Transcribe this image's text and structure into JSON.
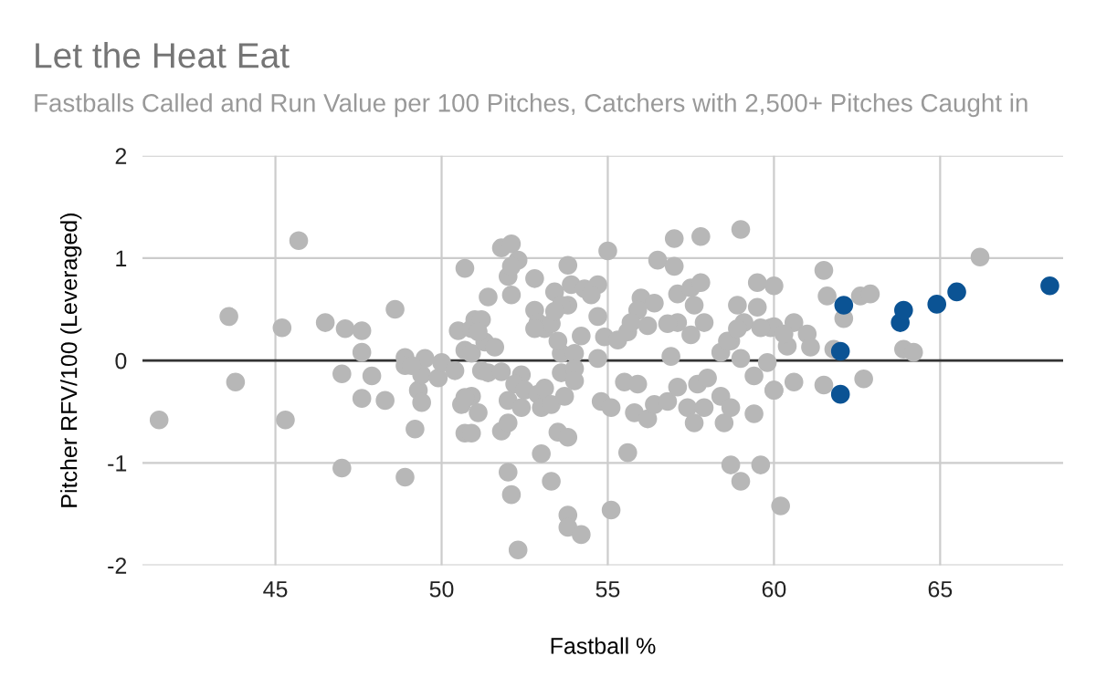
{
  "chart_data": {
    "type": "scatter",
    "title": "Let the Heat Eat",
    "subtitle": "Fastballs Called and Run Value per 100 Pitches, Catchers with 2,500+ Pitches Caught in",
    "xlabel": "Fastball %",
    "ylabel": "Pitcher RFV/100 (Leveraged)",
    "xlim": [
      41,
      68.7
    ],
    "ylim": [
      -2,
      2
    ],
    "xticks": [
      45,
      50,
      55,
      60,
      65
    ],
    "yticks": [
      -2,
      -1,
      0,
      1,
      2
    ],
    "grid": true,
    "marker": "circle",
    "legend": false,
    "ref_lines": [
      {
        "axis": "y",
        "value": 0,
        "color": "#333333"
      }
    ],
    "series": [
      {
        "color": "#b7b7b7",
        "x": [
          41.5,
          43.6,
          43.8,
          45.2,
          45.3,
          45.7,
          46.5,
          47.1,
          47.0,
          47.0,
          47.6,
          47.6,
          47.6,
          47.9,
          48.3,
          48.6,
          48.9,
          48.9,
          48.9,
          49.2,
          49.3,
          49.4,
          49.4,
          49.5,
          49.1,
          49.9,
          50.0,
          50.4,
          50.5,
          50.7,
          50.7,
          50.6,
          50.7,
          50.9,
          51.0,
          50.7,
          51.1,
          50.9,
          51.2,
          51.4,
          51.8,
          52.1,
          52.3,
          52.0,
          52.1,
          52.8,
          52.1,
          52.8,
          52.9,
          53.1,
          53.3,
          53.4,
          53.8,
          53.9,
          53.8,
          53.6,
          54.3,
          54.7,
          54.5,
          54.2,
          55.0,
          54.9,
          55.3,
          55.6,
          56.0,
          56.4,
          55.9,
          56.2,
          56.5,
          57.0,
          57.0,
          57.8,
          57.1,
          57.5,
          57.8,
          57.6,
          57.9,
          57.1,
          59.0,
          58.9,
          59.1,
          59.5,
          59.5,
          59.9,
          60.0,
          59.6,
          50.9,
          51.3,
          51.6,
          51.2,
          51.4,
          51.8,
          52.4,
          52.2,
          52.5,
          52.0,
          52.4,
          52.9,
          53.1,
          53.0,
          53.3,
          53.6,
          53.6,
          54.0,
          54.0,
          54.0,
          53.7,
          53.5,
          53.8,
          54.7,
          54.8,
          55.1,
          55.5,
          55.9,
          55.8,
          56.2,
          56.4,
          56.9,
          56.8,
          57.1,
          57.4,
          57.6,
          57.9,
          57.7,
          58.0,
          58.4,
          58.5,
          58.7,
          58.4,
          58.7,
          59.0,
          59.4,
          59.4,
          59.8,
          60.0,
          50.9,
          51.8,
          52.0,
          52.0,
          52.1,
          52.3,
          53.0,
          53.3,
          53.8,
          53.8,
          54.2,
          55.1,
          55.6,
          58.7,
          59.0,
          59.6,
          60.2,
          51.1,
          52.8,
          53.4,
          53.5,
          54.7,
          55.7,
          56.8,
          57.5,
          58.6,
          58.9,
          60.0,
          60.6,
          60.4,
          60.3,
          61.0,
          61.1,
          60.0,
          60.6,
          61.5,
          61.6,
          62.1,
          61.8,
          61.5,
          62.6,
          62.9,
          62.7,
          63.9,
          64.2,
          66.2
        ],
        "values": [
          -0.58,
          0.43,
          -0.21,
          0.32,
          -0.58,
          1.17,
          0.37,
          0.31,
          -0.13,
          -1.05,
          0.29,
          0.08,
          -0.37,
          -0.15,
          -0.39,
          0.5,
          0.03,
          -0.05,
          -1.14,
          -0.67,
          -0.29,
          -0.41,
          -0.14,
          0.02,
          -0.05,
          -0.17,
          -0.02,
          -0.1,
          0.29,
          0.9,
          0.1,
          -0.43,
          -0.71,
          -0.35,
          0.4,
          -0.36,
          -0.51,
          0.31,
          0.4,
          0.62,
          1.1,
          1.14,
          0.98,
          0.82,
          0.92,
          0.8,
          0.64,
          0.49,
          0.37,
          0.31,
          0.36,
          0.67,
          0.93,
          0.74,
          0.54,
          0.54,
          0.7,
          0.74,
          0.64,
          0.24,
          1.07,
          0.23,
          0.2,
          0.28,
          0.61,
          0.56,
          0.49,
          0.34,
          0.98,
          1.19,
          0.92,
          1.21,
          0.65,
          0.71,
          0.76,
          0.54,
          0.37,
          0.37,
          1.28,
          0.54,
          0.37,
          0.76,
          0.52,
          0.32,
          0.33,
          0.32,
          0.07,
          0.18,
          0.13,
          -0.1,
          -0.12,
          -0.11,
          -0.14,
          -0.23,
          -0.29,
          -0.39,
          -0.46,
          -0.33,
          -0.27,
          -0.46,
          -0.43,
          0.07,
          -0.12,
          0.07,
          -0.08,
          -0.2,
          -0.35,
          -0.7,
          -0.75,
          0.02,
          -0.4,
          -0.46,
          -0.21,
          -0.23,
          -0.51,
          -0.57,
          -0.43,
          0.04,
          -0.4,
          -0.26,
          -0.46,
          -0.61,
          -0.46,
          -0.23,
          -0.17,
          -0.35,
          -0.61,
          -0.46,
          0.08,
          0.19,
          0.02,
          -0.15,
          -0.52,
          -0.02,
          -0.29,
          -0.71,
          -0.69,
          -0.61,
          -1.09,
          -1.31,
          -1.85,
          -0.91,
          -1.18,
          -1.51,
          -1.63,
          -1.7,
          -1.46,
          -0.9,
          -1.02,
          -1.18,
          -1.02,
          -1.42,
          0.28,
          0.31,
          0.48,
          0.19,
          0.43,
          0.37,
          0.36,
          0.25,
          0.19,
          0.31,
          0.73,
          0.37,
          0.14,
          0.26,
          0.26,
          0.13,
          -0.29,
          -0.21,
          0.88,
          0.63,
          0.41,
          0.11,
          -0.24,
          0.63,
          0.65,
          -0.18,
          0.11,
          0.08,
          1.01
        ]
      },
      {
        "color": "#0b5394",
        "x": [
          62.1,
          62.0,
          62.0,
          63.8,
          63.9,
          64.9,
          65.5,
          68.3
        ],
        "values": [
          0.54,
          0.09,
          -0.33,
          0.37,
          0.49,
          0.55,
          0.67,
          0.73
        ]
      }
    ]
  }
}
